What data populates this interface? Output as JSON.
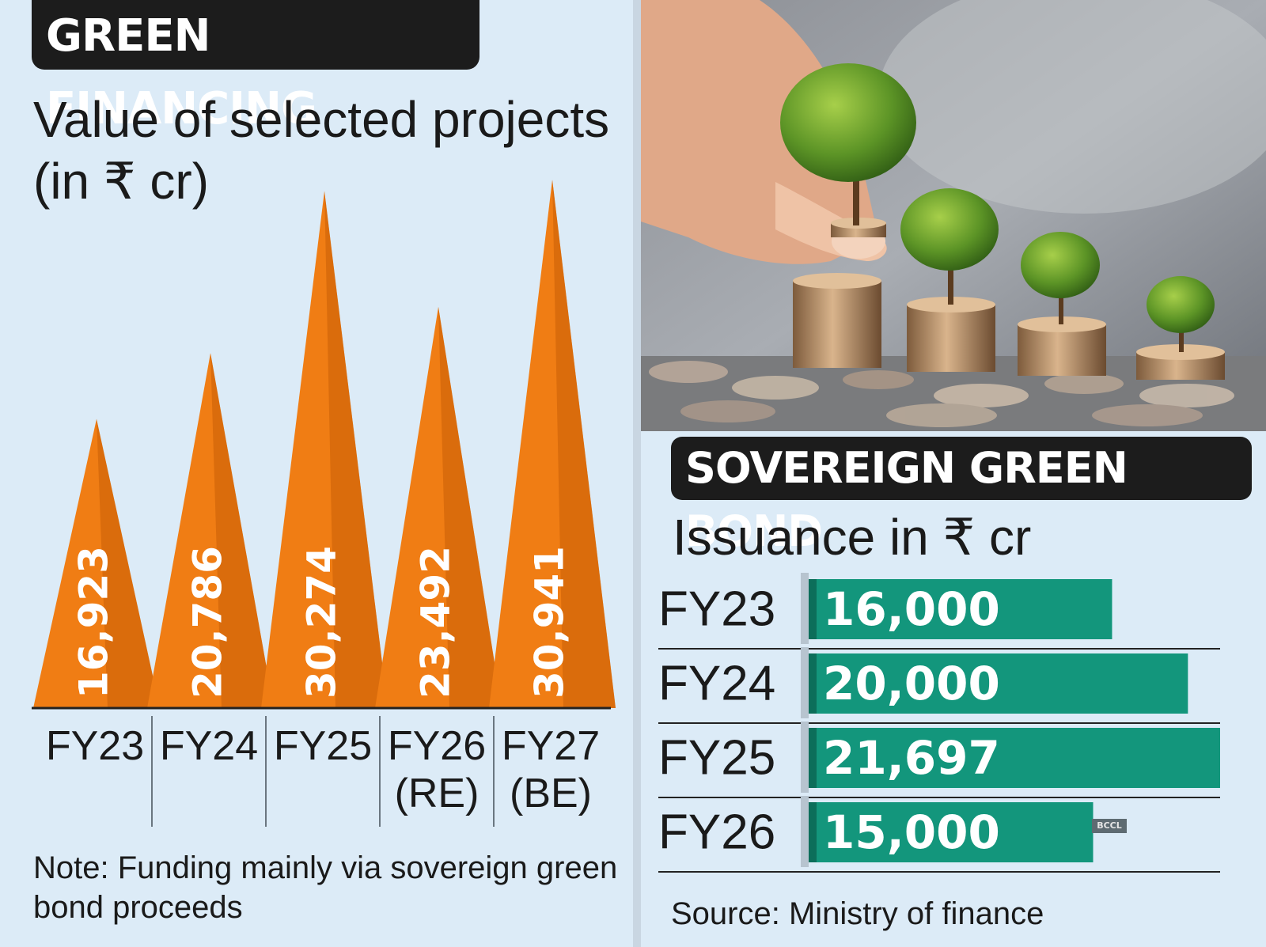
{
  "left": {
    "title": "GREEN FINANCING",
    "subtitle": "Value of selected projects (in ₹ cr)",
    "note": "Note: Funding mainly via sovereign green bond proceeds"
  },
  "right": {
    "title": "SOVEREIGN GREEN BOND",
    "subtitle": "Issuance in ₹ cr",
    "source": "Source: Ministry of finance",
    "watermark": "BCCL",
    "photo_icon": "hand-coins-trees-photo"
  },
  "colors": {
    "orange": "#f07d14",
    "orange_dark": "#c95f06",
    "green": "#13967c",
    "green_dark": "#0c6e5a",
    "header_bg": "#1c1c1c"
  },
  "chart_data": [
    {
      "type": "bar",
      "title": "Value of selected projects (in ₹ cr)",
      "categories": [
        "FY23",
        "FY24",
        "FY25",
        "FY26 (RE)",
        "FY27 (BE)"
      ],
      "category_lines": [
        [
          "FY23"
        ],
        [
          "FY24"
        ],
        [
          "FY25"
        ],
        [
          "FY26",
          "(RE)"
        ],
        [
          "FY27",
          "(BE)"
        ]
      ],
      "values": [
        16923,
        20786,
        30274,
        23492,
        30941
      ],
      "labels": [
        "16,923",
        "20,786",
        "30,274",
        "23,492",
        "30,941"
      ],
      "ylim": [
        0,
        31500
      ],
      "grid": false
    },
    {
      "type": "bar",
      "orientation": "horizontal",
      "title": "Issuance in ₹ cr",
      "categories": [
        "FY23",
        "FY24",
        "FY25",
        "FY26"
      ],
      "values": [
        16000,
        20000,
        21697,
        15000
      ],
      "labels": [
        "16,000",
        "20,000",
        "21,697",
        "15,000"
      ],
      "xlim": [
        0,
        21697
      ],
      "grid": false
    }
  ]
}
